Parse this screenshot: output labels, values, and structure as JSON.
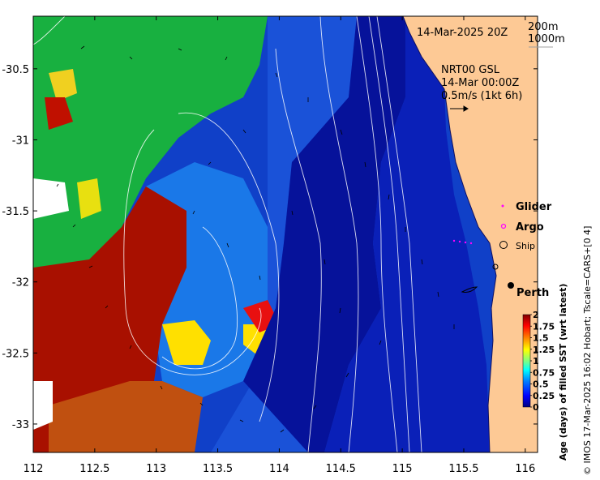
{
  "map": {
    "date_label": "14-Mar-2025 20Z",
    "contour_legend": [
      "200m",
      "1000m"
    ],
    "current_info": [
      "NRT00 GSL",
      "14-Mar 00:00Z",
      "0.5m/s (1kt 6h)"
    ],
    "legend_items": [
      {
        "label": "Glider",
        "marker": "dot",
        "color": "#ff00ff"
      },
      {
        "label": "Argo",
        "marker": "ring",
        "color": "#ff00ff"
      },
      {
        "label": "Ship",
        "marker": "circle",
        "color": "#000000"
      }
    ],
    "place_label": "Perth",
    "lon_ticks": [
      112,
      112.5,
      113,
      113.5,
      114,
      114.5,
      115,
      115.5,
      116
    ],
    "lat_ticks": [
      -30.5,
      -31,
      -31.5,
      -32,
      -32.5,
      -33
    ],
    "lon_range": [
      112,
      116.1
    ],
    "lat_range": [
      -33.2,
      -30.13
    ]
  },
  "colorbar": {
    "title": "Age (days) of filled SST (wrt latest)",
    "ticks": [
      2,
      1.75,
      1.5,
      1.25,
      1,
      0.75,
      0.5,
      0.25,
      0
    ],
    "range": [
      0,
      2
    ],
    "colors": [
      "#00007f",
      "#0000ff",
      "#0080ff",
      "#00ffff",
      "#80ff80",
      "#ffff00",
      "#ff8000",
      "#ff0000",
      "#7f0000"
    ]
  },
  "credit": "© IMOS 17-Mar-2025 16:02 Hobart; Tscale=CARS+[0 4]"
}
